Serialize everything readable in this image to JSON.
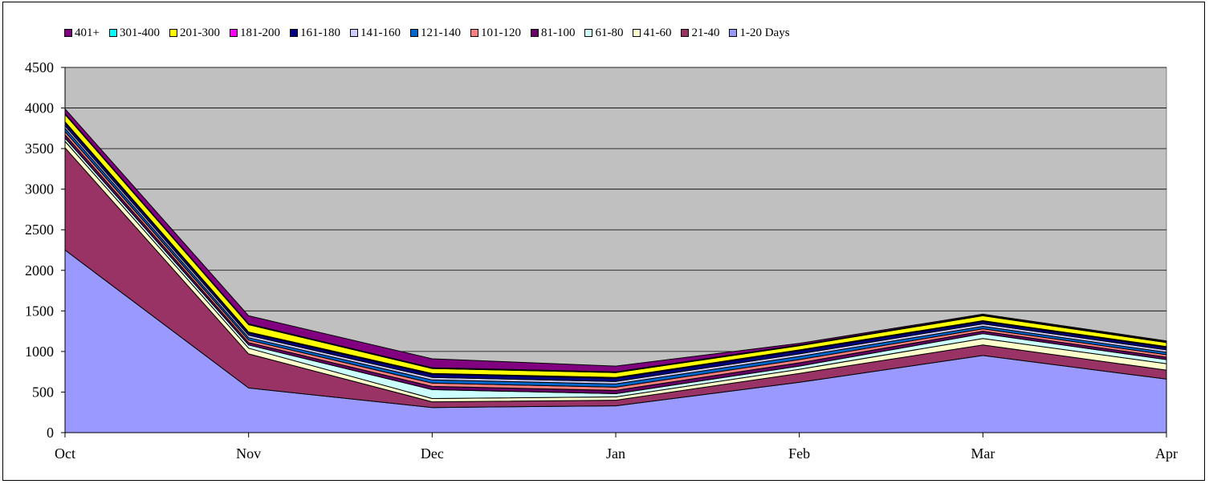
{
  "chart_data": {
    "type": "area",
    "stacked": true,
    "categories": [
      "Oct",
      "Nov",
      "Dec",
      "Jan",
      "Feb",
      "Mar",
      "Apr"
    ],
    "ylim": [
      0,
      4500
    ],
    "yticks": [
      "0",
      "500",
      "1000",
      "1500",
      "2000",
      "2500",
      "3000",
      "3500",
      "4000",
      "4500"
    ],
    "grid": true,
    "plot_background": "#c0c0c0",
    "legend_position": "top",
    "series": [
      {
        "name": "1-20 Days",
        "color": "#9999ff",
        "values": [
          2250,
          550,
          310,
          330,
          620,
          950,
          660
        ]
      },
      {
        "name": "21-40",
        "color": "#993366",
        "values": [
          1260,
          420,
          70,
          70,
          110,
          130,
          110
        ]
      },
      {
        "name": "41-60",
        "color": "#ffffcc",
        "values": [
          80,
          70,
          40,
          40,
          50,
          80,
          80
        ]
      },
      {
        "name": "61-80",
        "color": "#ccffff",
        "values": [
          40,
          40,
          110,
          40,
          40,
          60,
          50
        ]
      },
      {
        "name": "81-100",
        "color": "#660066",
        "values": [
          40,
          30,
          40,
          40,
          40,
          30,
          30
        ]
      },
      {
        "name": "101-120",
        "color": "#ff8080",
        "values": [
          40,
          30,
          40,
          40,
          40,
          30,
          30
        ]
      },
      {
        "name": "121-140",
        "color": "#0066cc",
        "values": [
          40,
          30,
          40,
          40,
          40,
          30,
          30
        ]
      },
      {
        "name": "141-160",
        "color": "#ccccff",
        "values": [
          30,
          30,
          30,
          30,
          30,
          30,
          30
        ]
      },
      {
        "name": "161-180",
        "color": "#000080",
        "values": [
          40,
          30,
          40,
          40,
          40,
          30,
          30
        ]
      },
      {
        "name": "181-200",
        "color": "#ff00ff",
        "values": [
          10,
          10,
          10,
          10,
          10,
          10,
          10
        ]
      },
      {
        "name": "201-300",
        "color": "#ffff00",
        "values": [
          90,
          90,
          60,
          60,
          50,
          60,
          50
        ]
      },
      {
        "name": "301-400",
        "color": "#00ffff",
        "values": [
          10,
          10,
          10,
          10,
          10,
          10,
          10
        ]
      },
      {
        "name": "401+",
        "color": "#800080",
        "values": [
          60,
          100,
          110,
          70,
          20,
          10,
          10
        ]
      }
    ]
  }
}
